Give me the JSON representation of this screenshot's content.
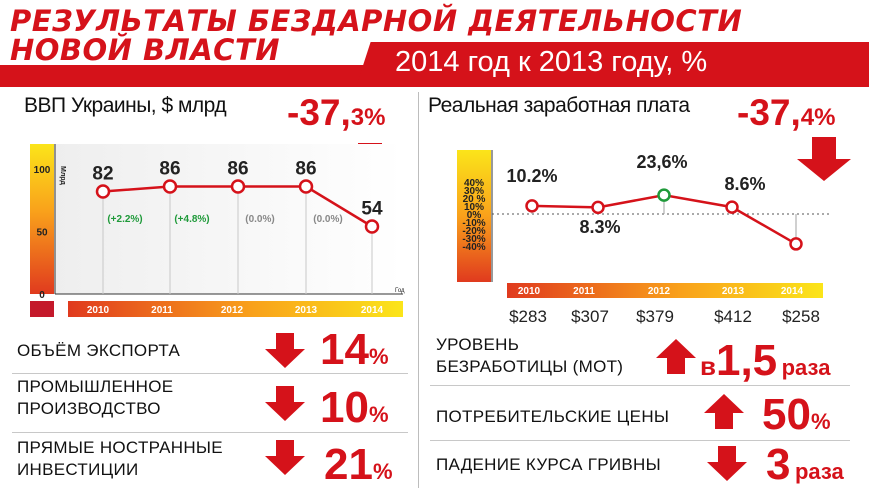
{
  "header": {
    "title_line1": "РЕЗУЛЬТАТЫ БЕЗДАРНОЙ ДЕЯТЕЛЬНОСТИ",
    "title_line2": "НОВОЙ  ВЛАСТИ",
    "subtitle": "2014 год к 2013 году, %"
  },
  "colors": {
    "accent_red": "#d5121a",
    "growth_green": "#1f9a3a",
    "neutral_gray": "#888888"
  },
  "gdp": {
    "title": "ВВП Украины, $ млрд",
    "change_main": "-37,",
    "change_decimal": "3%",
    "arrow": "down-arrow-icon"
  },
  "wage": {
    "title": "Реальная заработная плата",
    "change_main": "-37,",
    "change_decimal": "4%",
    "arrow": "down-arrow-icon"
  },
  "chart_data": [
    {
      "type": "line",
      "title": "ВВП Украины, $ млрд",
      "ylabel": "Млрд",
      "xlabel": "Год",
      "x": [
        "2010",
        "2011",
        "2012",
        "2013",
        "2014"
      ],
      "y": [
        82,
        86,
        86,
        86,
        54
      ],
      "value_labels": [
        "82",
        "86",
        "86",
        "86",
        "54"
      ],
      "change_labels": [
        "(+2.2%)",
        "(+4.8%)",
        "(0.0%)",
        "(0.0%)",
        ""
      ],
      "change_colors": [
        "#1f9a3a",
        "#1f9a3a",
        "#888888",
        "#888888",
        ""
      ],
      "y_ticks": [
        "100",
        "50",
        "0"
      ],
      "ylim": [
        0,
        120
      ]
    },
    {
      "type": "line",
      "title": "Реальная заработная плата",
      "x": [
        "2010",
        "2011",
        "2012",
        "2013",
        "2014"
      ],
      "y": [
        10.2,
        8.3,
        23.6,
        8.6,
        -37.4
      ],
      "value_labels": [
        "10.2%",
        "8.3%",
        "23,6%",
        "8.6%",
        ""
      ],
      "x_extra_labels": [
        "$283",
        "$307",
        "$379",
        "$412",
        "$258"
      ],
      "y_ticks": [
        "40%",
        "30%",
        "20 %",
        "10%",
        "0%",
        "-10%",
        "-20%",
        "-30%",
        "-40%"
      ],
      "ylim": [
        -40,
        40
      ]
    }
  ],
  "left_rows": [
    {
      "label_lines": [
        "ОБЪЁМ ЭКСПОРТА"
      ],
      "direction": "down",
      "value": "14",
      "unit": "%"
    },
    {
      "label_lines": [
        "ПРОМЫШЛЕННОЕ",
        "ПРОИЗВОДСТВО"
      ],
      "direction": "down",
      "value": "10",
      "unit": "%"
    },
    {
      "label_lines": [
        "ПРЯМЫЕ НОСТРАННЫЕ",
        "ИНВЕСТИЦИИ"
      ],
      "direction": "down",
      "value": "21",
      "unit": "%"
    }
  ],
  "right_rows": [
    {
      "label_lines": [
        "УРОВЕНЬ",
        "БЕЗРАБОТИЦЫ (МОТ)"
      ],
      "direction": "up",
      "prefix": "в",
      "value": "1,5",
      "unit": "раза"
    },
    {
      "label_lines": [
        "ПОТРЕБИТЕЛЬСКИЕ ЦЕНЫ"
      ],
      "direction": "up",
      "prefix": "",
      "value": "50",
      "unit": "%"
    },
    {
      "label_lines": [
        "ПАДЕНИЕ КУРСА ГРИВНЫ"
      ],
      "direction": "down",
      "prefix": "",
      "value": "3",
      "unit": "раза"
    }
  ]
}
